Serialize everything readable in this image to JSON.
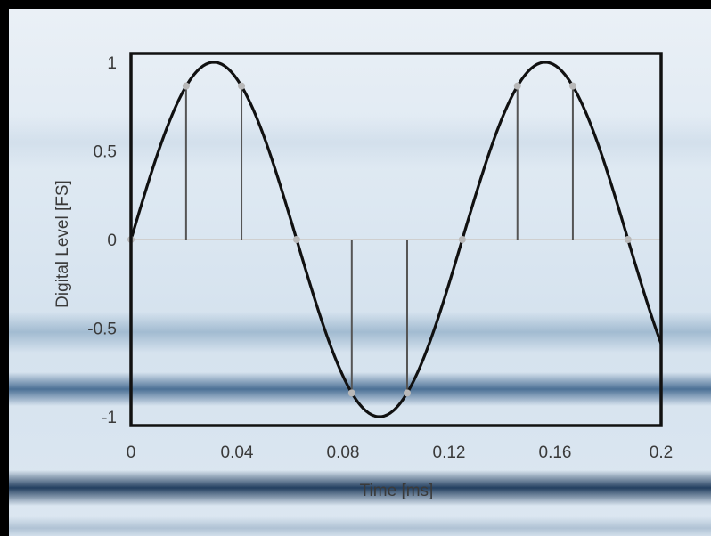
{
  "chart_data": {
    "type": "line",
    "title": "",
    "xlabel": "Time [ms]",
    "ylabel": "Digital Level [FS]",
    "xlim": [
      0,
      0.2
    ],
    "ylim": [
      -1.05,
      1.05
    ],
    "x_ticks": [
      {
        "value": 0,
        "label": "0"
      },
      {
        "value": 0.04,
        "label": "0.04"
      },
      {
        "value": 0.08,
        "label": "0.08"
      },
      {
        "value": 0.12,
        "label": "0.12"
      },
      {
        "value": 0.16,
        "label": "0.16"
      },
      {
        "value": 0.2,
        "label": "0.2"
      }
    ],
    "y_ticks": [
      {
        "value": 1,
        "label": "1"
      },
      {
        "value": 0.5,
        "label": "0.5"
      },
      {
        "value": 0,
        "label": "0"
      },
      {
        "value": -0.5,
        "label": "-0.5"
      },
      {
        "value": -1,
        "label": "-1"
      }
    ],
    "grid": false,
    "series": [
      {
        "type": "sine",
        "frequency_khz": 8,
        "amplitude": 1,
        "color": "#111111"
      }
    ],
    "samples": {
      "type": "stem",
      "x": [
        0,
        0.0208,
        0.0417,
        0.0625,
        0.0833,
        0.1042,
        0.125,
        0.1458,
        0.1667,
        0.1875
      ],
      "y": [
        0,
        0.866,
        0.866,
        0,
        -0.866,
        -0.866,
        0,
        0.866,
        0.866,
        0
      ],
      "stem_color": "#555555",
      "marker_color": "#b8b8b8"
    },
    "zero_line_color": "#cfcfcf"
  }
}
